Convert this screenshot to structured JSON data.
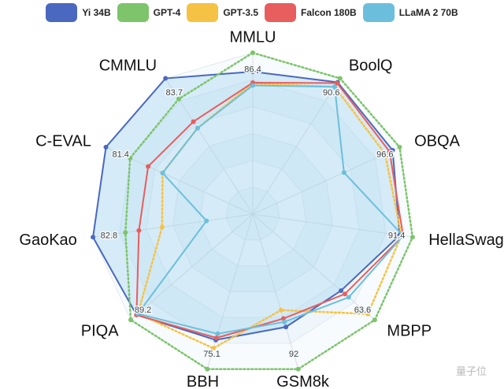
{
  "chart_data": {
    "type": "radar",
    "title": "",
    "axes": [
      "MMLU",
      "BoolQ",
      "OBQA",
      "HellaSwag",
      "MBPP",
      "GSM8k",
      "BBH",
      "PIQA",
      "GaoKao",
      "C-EVAL",
      "CMMLU"
    ],
    "axis_max_labels": [
      "86.4",
      "90.6",
      "96.6",
      "91.4",
      "63.6",
      "92",
      "75.1",
      "89.2",
      "82.8",
      "81.4",
      "83.7"
    ],
    "axis_max": [
      86.4,
      90.6,
      96.6,
      91.4,
      63.6,
      92,
      75.1,
      89.2,
      82.8,
      81.4,
      83.7
    ],
    "grid": true,
    "legend_position": "top",
    "series": [
      {
        "name": "Yi 34B",
        "color": "#4a68c0",
        "style": "solid",
        "values": [
          76.3,
          88.0,
          92.0,
          84.0,
          46.0,
          67.0,
          61.0,
          85.0,
          82.8,
          81.4,
          83.7
        ]
      },
      {
        "name": "GPT-4",
        "color": "#7dc46b",
        "style": "dotted",
        "values": [
          86.4,
          90.6,
          96.6,
          91.4,
          63.6,
          92.0,
          75.1,
          89.2,
          66.0,
          68.0,
          71.0
        ]
      },
      {
        "name": "GPT-3.5",
        "color": "#f6c244",
        "style": "dotted",
        "values": [
          70.0,
          85.0,
          87.0,
          85.0,
          60.0,
          57.0,
          65.0,
          84.0,
          47.0,
          50.0,
          53.0
        ]
      },
      {
        "name": "Falcon 180B",
        "color": "#e85d5d",
        "style": "solid",
        "values": [
          70.4,
          87.5,
          90.0,
          86.0,
          48.0,
          62.0,
          60.0,
          85.0,
          59.0,
          58.0,
          57.0
        ]
      },
      {
        "name": "LLaMA 2 70B",
        "color": "#6cbfdc",
        "style": "solid",
        "values": [
          68.9,
          85.0,
          60.0,
          86.0,
          50.0,
          64.0,
          58.0,
          84.0,
          24.0,
          50.0,
          53.0
        ]
      }
    ]
  },
  "watermark": "量子位"
}
